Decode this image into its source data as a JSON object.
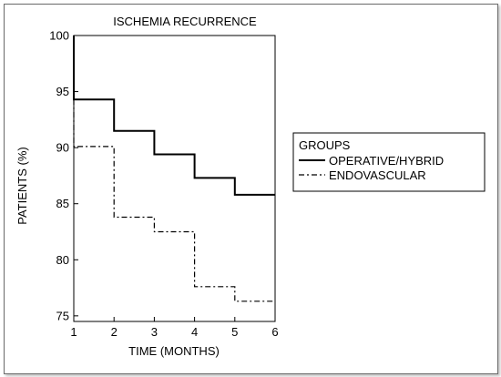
{
  "chart_data": {
    "type": "line",
    "step": true,
    "title": "ISCHEMIA RECURRENCE",
    "xlabel": "TIME (MONTHS)",
    "ylabel": "PATIENTS (%)",
    "xlim": [
      1,
      6
    ],
    "ylim": [
      74.5,
      100
    ],
    "xticks": [
      "1",
      "2",
      "3",
      "4",
      "5",
      "6"
    ],
    "yticks": [
      "75",
      "80",
      "85",
      "90",
      "95",
      "100"
    ],
    "grid": false,
    "legend": {
      "title": "GROUPS",
      "position": "right"
    },
    "series": [
      {
        "name": "OPERATIVE/HYBRID",
        "style": "solid",
        "x": [
          1,
          1,
          2,
          2,
          3,
          3,
          4,
          4,
          5,
          5,
          6
        ],
        "y": [
          100,
          94.3,
          94.3,
          91.5,
          91.5,
          89.4,
          89.4,
          87.3,
          87.3,
          85.8,
          85.8
        ]
      },
      {
        "name": "ENDOVASCULAR",
        "style": "dash-dot",
        "x": [
          1,
          1,
          2,
          2,
          3,
          3,
          4,
          4,
          5,
          5,
          6
        ],
        "y": [
          100,
          90.1,
          90.1,
          83.8,
          83.8,
          82.5,
          82.5,
          77.6,
          77.6,
          76.3,
          76.3
        ]
      }
    ]
  }
}
